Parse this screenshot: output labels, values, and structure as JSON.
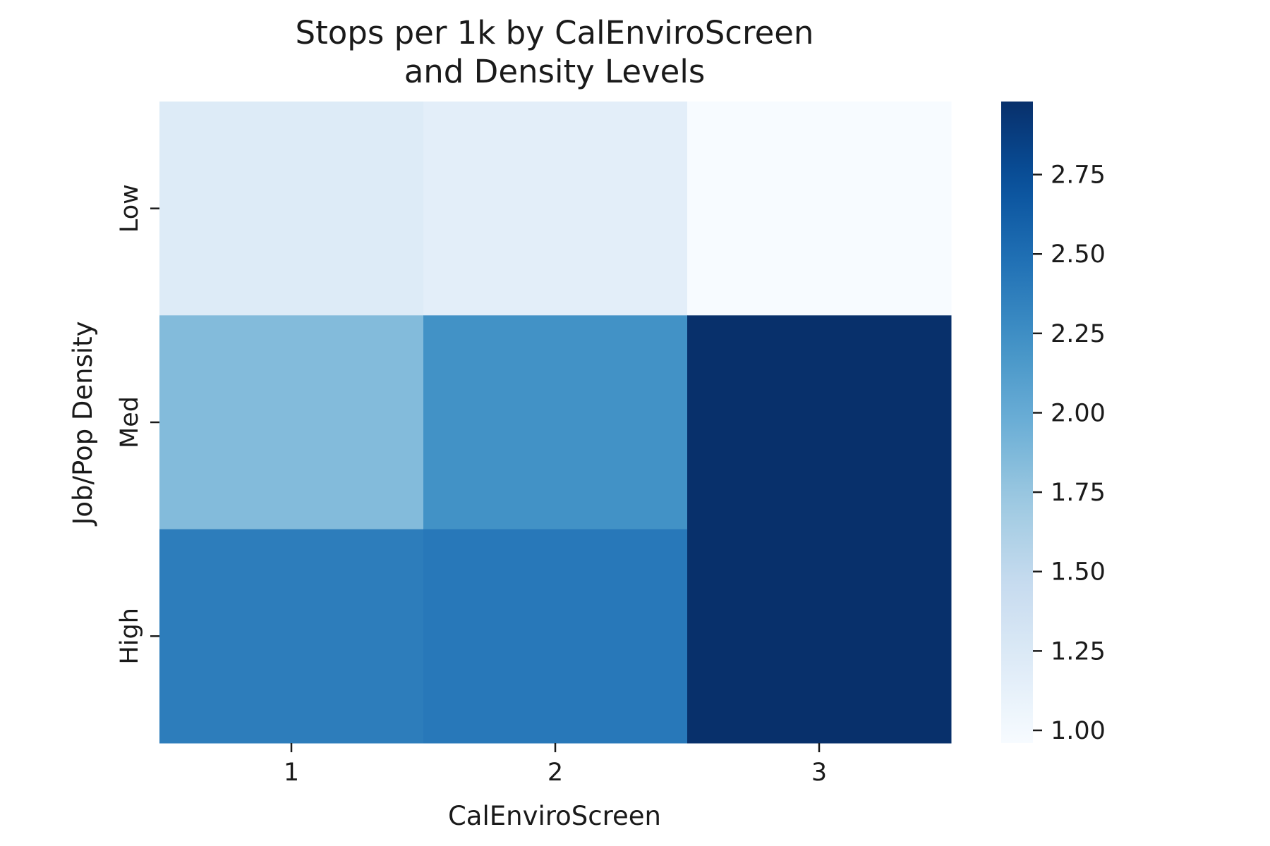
{
  "chart_data": {
    "type": "heatmap",
    "title": "Stops per 1k by CalEnviroScreen\nand Density Levels",
    "xlabel": "CalEnviroScreen",
    "ylabel": "Job/Pop Density",
    "x_categories": [
      "1",
      "2",
      "3"
    ],
    "y_categories": [
      "Low",
      "Med",
      "High"
    ],
    "values": [
      [
        1.22,
        1.16,
        0.96
      ],
      [
        1.85,
        2.22,
        2.98
      ],
      [
        2.38,
        2.42,
        2.98
      ]
    ],
    "colormap": "Blues",
    "colorbar": {
      "vmin": 0.96,
      "vmax": 2.98,
      "ticks": [
        1.0,
        1.25,
        1.5,
        1.75,
        2.0,
        2.25,
        2.5,
        2.75
      ],
      "tick_labels": [
        "1.00",
        "1.25",
        "1.50",
        "1.75",
        "2.00",
        "2.25",
        "2.50",
        "2.75"
      ]
    },
    "grid": false,
    "legend": "colorbar-right"
  }
}
